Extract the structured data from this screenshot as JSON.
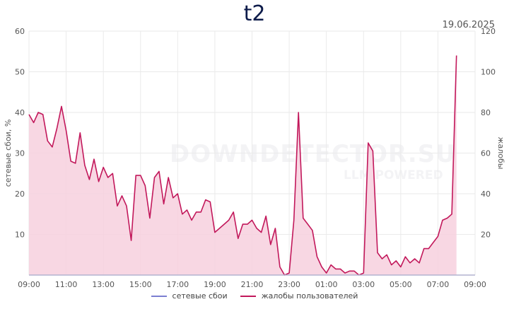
{
  "colors": {
    "failures": "#7b7fd1",
    "complaints_line": "#c2185b",
    "complaints_fill": "#f7d0de",
    "grid": "#eaeaea"
  },
  "watermark": {
    "main": "DOWNDETECTOR.SU",
    "sub": "LLM POWERED"
  },
  "chart_data": {
    "type": "line",
    "title": "t2",
    "date": "19.06.2025",
    "ylabel_left": "сетевые сбои, %",
    "ylabel_right": "жалобы",
    "ylim_left": [
      0,
      60
    ],
    "ylim_right": [
      0,
      120
    ],
    "yticks_left": [
      "10",
      "20",
      "30",
      "40",
      "50",
      "60"
    ],
    "yticks_right": [
      "20",
      "40",
      "60",
      "80",
      "100",
      "120"
    ],
    "xlim": [
      9,
      33
    ],
    "xticks": [
      "09:00",
      "11:00",
      "13:00",
      "15:00",
      "17:00",
      "19:00",
      "21:00",
      "23:00",
      "01:00",
      "03:00",
      "05:00",
      "07:00",
      "09:00"
    ],
    "legend": [
      "сетевые сбои",
      "жалобы пользователей"
    ],
    "series": [
      {
        "name": "сетевые сбои",
        "axis": "left",
        "x": [
          9,
          33
        ],
        "y": [
          0,
          0
        ]
      },
      {
        "name": "жалобы пользователей",
        "axis": "right",
        "x": [
          9.0,
          9.25,
          9.5,
          9.75,
          10.0,
          10.25,
          10.5,
          10.75,
          11.0,
          11.25,
          11.5,
          11.75,
          12.0,
          12.25,
          12.5,
          12.75,
          13.0,
          13.25,
          13.5,
          13.75,
          14.0,
          14.25,
          14.5,
          14.75,
          15.0,
          15.25,
          15.5,
          15.75,
          16.0,
          16.25,
          16.5,
          16.75,
          17.0,
          17.25,
          17.5,
          17.75,
          18.0,
          18.25,
          18.5,
          18.75,
          19.0,
          19.25,
          19.5,
          19.75,
          20.0,
          20.25,
          20.5,
          20.75,
          21.0,
          21.25,
          21.5,
          21.75,
          22.0,
          22.25,
          22.5,
          22.75,
          23.0,
          23.25,
          23.5,
          23.75,
          24.0,
          24.25,
          24.5,
          24.75,
          25.0,
          25.25,
          25.5,
          25.75,
          26.0,
          26.25,
          26.5,
          26.75,
          27.0,
          27.25,
          27.5,
          27.75,
          28.0,
          28.25,
          28.5,
          28.75,
          29.0,
          29.25,
          29.5,
          29.75,
          30.0,
          30.25,
          30.5,
          30.75,
          31.0,
          31.25,
          31.5,
          31.75,
          32.0
        ],
        "y": [
          79,
          75,
          80,
          79,
          66,
          63,
          72,
          83,
          71,
          56,
          55,
          70,
          54,
          47,
          57,
          46,
          53,
          48,
          50,
          34,
          39,
          34,
          17,
          49,
          49,
          44,
          28,
          48,
          51,
          35,
          48,
          38,
          40,
          30,
          32,
          27,
          31,
          31,
          37,
          36,
          21,
          23,
          25,
          27,
          31,
          18,
          25,
          25,
          27,
          23,
          21,
          29,
          15,
          23,
          4,
          0,
          1,
          27,
          80,
          28,
          25,
          22,
          9,
          4,
          1,
          5,
          3,
          3,
          1,
          2,
          2,
          0,
          1,
          65,
          61,
          11,
          8,
          10,
          5,
          7,
          4,
          9,
          6,
          8,
          6,
          13,
          13,
          16,
          19,
          27,
          28,
          30,
          108
        ]
      }
    ]
  }
}
